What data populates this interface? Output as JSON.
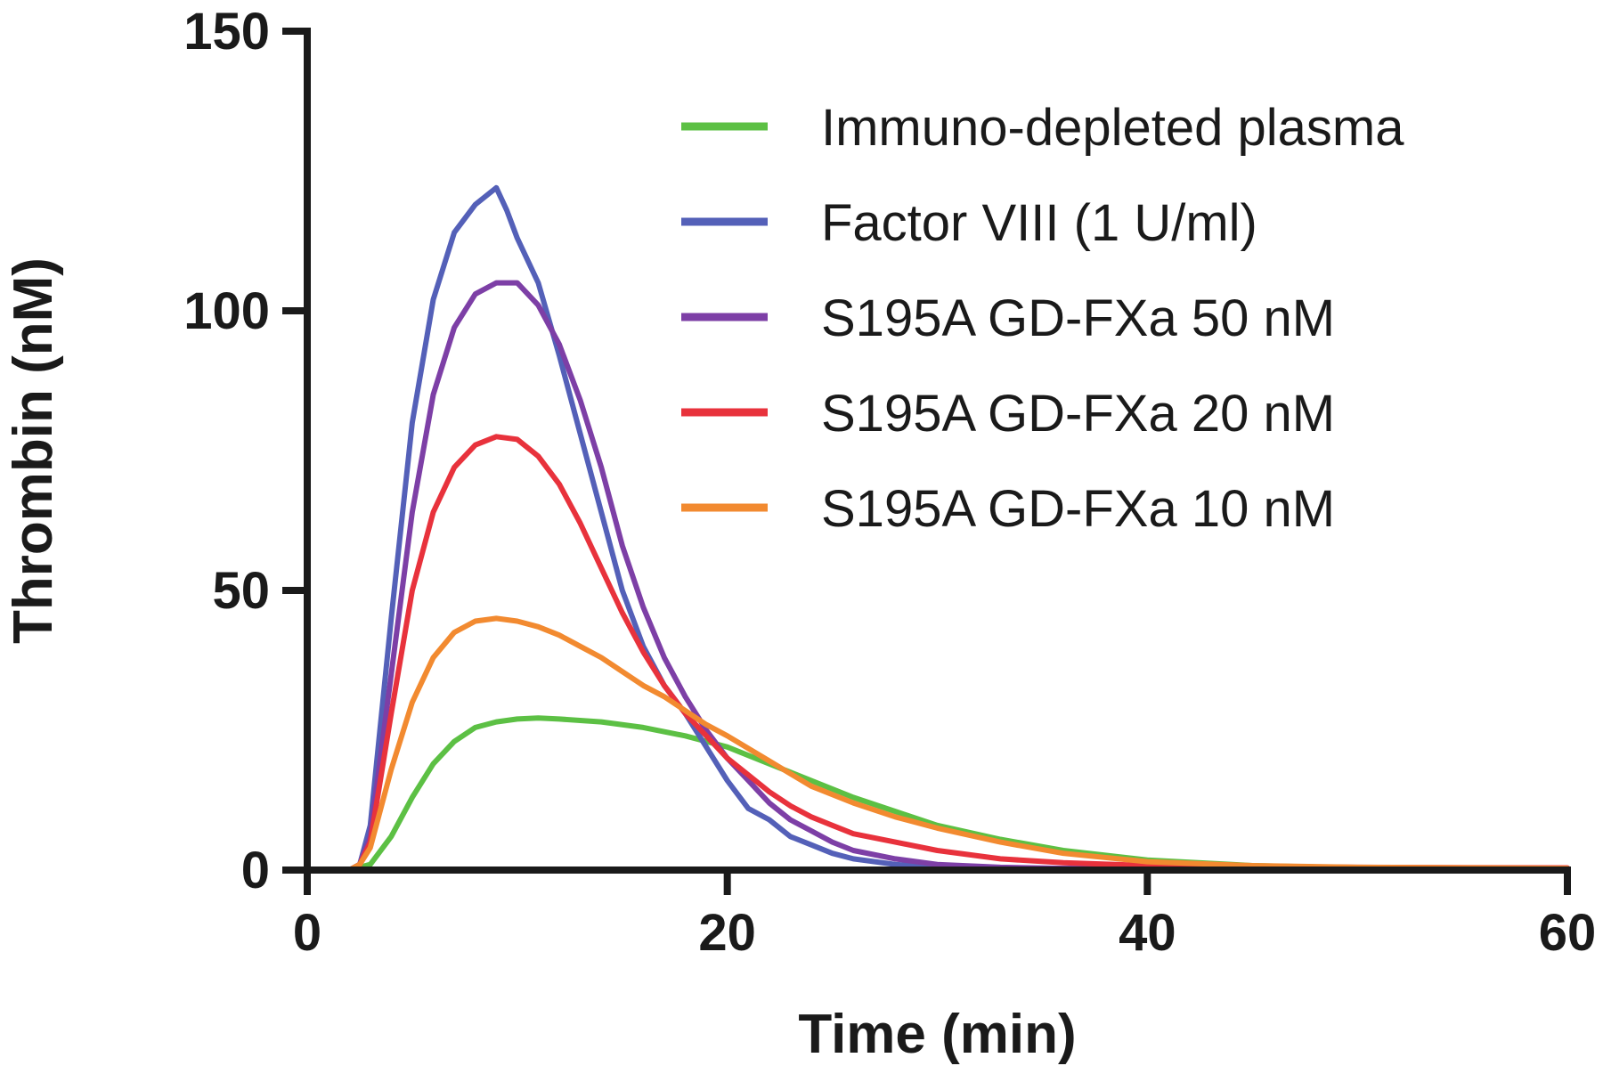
{
  "chart_data": {
    "type": "line",
    "title": "",
    "xlabel": "Time (min)",
    "ylabel": "Thrombin (nM)",
    "xlim": [
      0,
      60
    ],
    "ylim": [
      0,
      150
    ],
    "xticks": [
      "0",
      "20",
      "40",
      "60"
    ],
    "xtick_values": [
      0,
      20,
      40,
      60
    ],
    "yticks": [
      "0",
      "50",
      "100",
      "150"
    ],
    "ytick_values": [
      0,
      50,
      100,
      150
    ],
    "grid": false,
    "legend_position": "top-right",
    "series": [
      {
        "name": "Immuno-depleted plasma",
        "color": "#5cc044",
        "x": [
          0,
          2,
          3,
          4,
          5,
          6,
          7,
          8,
          9,
          10,
          11,
          12,
          14,
          16,
          18,
          20,
          22,
          24,
          26,
          28,
          30,
          33,
          36,
          40,
          45,
          50,
          55,
          60
        ],
        "y": [
          0,
          0,
          1,
          6,
          13,
          19,
          23,
          25.5,
          26.5,
          27,
          27.2,
          27,
          26.5,
          25.5,
          24,
          22,
          19,
          16,
          13,
          10.5,
          8,
          5.5,
          3.5,
          1.8,
          0.8,
          0.4,
          0.2,
          0.1
        ]
      },
      {
        "name": "Factor VIII (1 U/ml)",
        "color": "#5460b8",
        "x": [
          0,
          2,
          2.5,
          3,
          4,
          5,
          6,
          7,
          8,
          9,
          9.5,
          10,
          11,
          12,
          13,
          14,
          15,
          16,
          17,
          18,
          19,
          20,
          21,
          22,
          23,
          24,
          25,
          26,
          28,
          30,
          35,
          40,
          50,
          60
        ],
        "y": [
          0,
          0,
          1,
          8,
          45,
          80,
          102,
          114,
          119,
          122,
          118,
          113,
          105,
          92,
          78,
          64,
          50,
          40,
          33,
          28,
          22,
          16,
          11,
          9,
          6,
          4.5,
          3,
          2,
          1,
          0.5,
          0.3,
          0.2,
          0.2,
          0.2
        ]
      },
      {
        "name": "S195A GD-FXa 50 nM",
        "color": "#7d3fa6",
        "x": [
          0,
          2,
          2.5,
          3,
          4,
          5,
          6,
          7,
          8,
          9,
          10,
          11,
          12,
          13,
          14,
          15,
          16,
          17,
          18,
          19,
          20,
          21,
          22,
          23,
          24,
          25,
          26,
          28,
          30,
          33,
          36,
          40,
          50,
          60
        ],
        "y": [
          0,
          0,
          1,
          6,
          35,
          64,
          85,
          97,
          103,
          105,
          105,
          101,
          94,
          84,
          72,
          58,
          47,
          38,
          31,
          25,
          20,
          16,
          12,
          9,
          7,
          5,
          3.5,
          2,
          1,
          0.5,
          0.3,
          0.3,
          0.3,
          0.3
        ]
      },
      {
        "name": "S195A GD-FXa 20 nM",
        "color": "#e8323c",
        "x": [
          0,
          2,
          2.5,
          3,
          4,
          5,
          6,
          7,
          8,
          9,
          10,
          11,
          12,
          13,
          14,
          15,
          16,
          17,
          18,
          19,
          20,
          21,
          22,
          23,
          24,
          25,
          26,
          28,
          30,
          33,
          36,
          40,
          50,
          60
        ],
        "y": [
          0,
          0,
          1,
          5,
          28,
          50,
          64,
          72,
          76,
          77.5,
          77,
          74,
          69,
          62,
          54,
          46,
          39,
          33,
          28,
          24,
          20,
          17,
          14,
          11.5,
          9.5,
          8,
          6.5,
          5,
          3.5,
          2,
          1.3,
          0.8,
          0.5,
          0.4
        ]
      },
      {
        "name": "S195A GD-FXa 10 nM",
        "color": "#f28a30",
        "x": [
          0,
          2,
          2.5,
          3,
          4,
          5,
          6,
          7,
          8,
          9,
          10,
          11,
          12,
          13,
          14,
          15,
          16,
          17,
          18,
          19,
          20,
          22,
          24,
          26,
          28,
          30,
          33,
          36,
          40,
          45,
          50,
          55,
          60
        ],
        "y": [
          0,
          0,
          1,
          4,
          18,
          30,
          38,
          42.5,
          44.5,
          45,
          44.5,
          43.5,
          42,
          40,
          38,
          35.5,
          33,
          31,
          28.5,
          26,
          24,
          19.5,
          15,
          12,
          9.5,
          7.5,
          5,
          3,
          1.5,
          0.8,
          0.5,
          0.4,
          0.3
        ]
      }
    ]
  }
}
